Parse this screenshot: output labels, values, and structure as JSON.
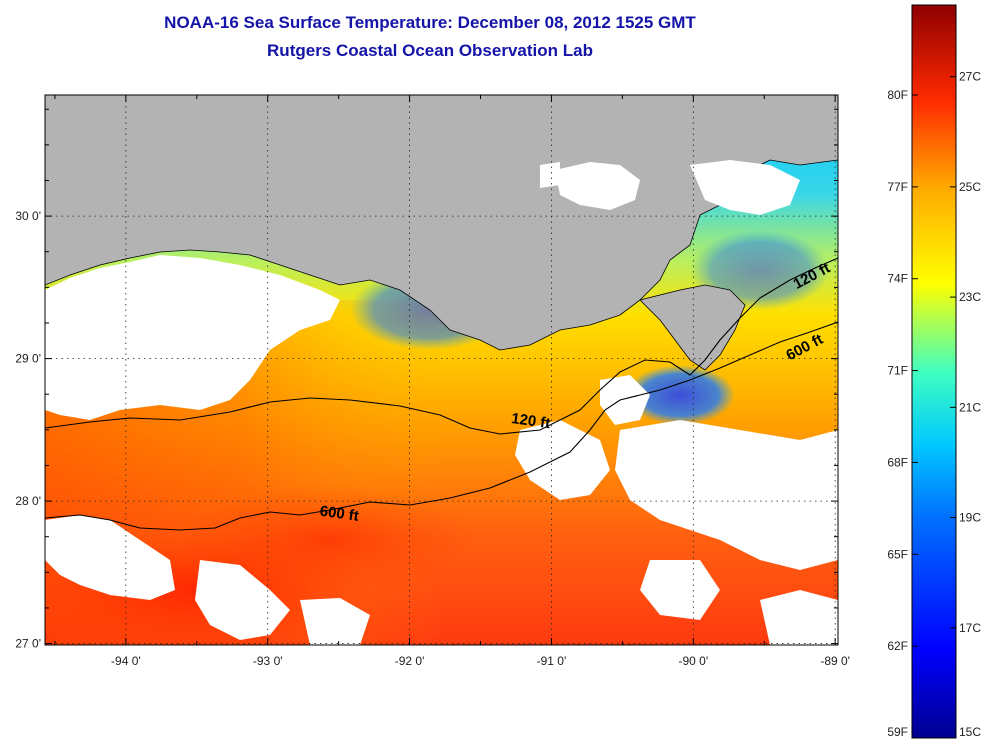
{
  "header": {
    "title": "NOAA-16 Sea Surface Temperature:  December 08, 2012 1525 GMT",
    "subtitle": "Rutgers Coastal Ocean Observation Lab"
  },
  "map": {
    "lat_range": [
      26.99,
      30.85
    ],
    "lon_range": [
      -94.57,
      -88.98
    ],
    "lat_ticks": [
      {
        "value": 30,
        "label": "30 0'"
      },
      {
        "value": 29,
        "label": "29 0'"
      },
      {
        "value": 28,
        "label": "28 0'"
      },
      {
        "value": 27,
        "label": "27 0'"
      }
    ],
    "lon_ticks": [
      {
        "value": -94,
        "label": "-94 0'"
      },
      {
        "value": -93,
        "label": "-93 0'"
      },
      {
        "value": -92,
        "label": "-92 0'"
      },
      {
        "value": -91,
        "label": "-91 0'"
      },
      {
        "value": -90,
        "label": "-90 0'"
      },
      {
        "value": -89,
        "label": "-89 0'"
      }
    ],
    "grid": "dotted",
    "land_color": "#b3b3b3",
    "cloud_color": "#ffffff"
  },
  "contours": [
    {
      "label": "120 ft",
      "label_pos": [
        -91.15,
        28.53
      ]
    },
    {
      "label": "600 ft",
      "label_pos": [
        -92.5,
        27.88
      ]
    },
    {
      "label": "120 ft",
      "label_pos": [
        -89.15,
        29.55
      ]
    },
    {
      "label": "600 ft",
      "label_pos": [
        -89.2,
        29.05
      ]
    }
  ],
  "colorbar": {
    "min_c": 15,
    "max_c": 28.3,
    "celsius_ticks": [
      {
        "value": 27,
        "label": "27C"
      },
      {
        "value": 25,
        "label": "25C"
      },
      {
        "value": 23,
        "label": "23C"
      },
      {
        "value": 21,
        "label": "21C"
      },
      {
        "value": 19,
        "label": "19C"
      },
      {
        "value": 17,
        "label": "17C"
      },
      {
        "value": 15,
        "label": "15C"
      }
    ],
    "fahrenheit_ticks": [
      {
        "value": 80,
        "label": "80F"
      },
      {
        "value": 77,
        "label": "77F"
      },
      {
        "value": 74,
        "label": "74F"
      },
      {
        "value": 71,
        "label": "71F"
      },
      {
        "value": 68,
        "label": "68F"
      },
      {
        "value": 65,
        "label": "65F"
      },
      {
        "value": 62,
        "label": "62F"
      },
      {
        "value": 59,
        "label": "59F"
      }
    ]
  }
}
